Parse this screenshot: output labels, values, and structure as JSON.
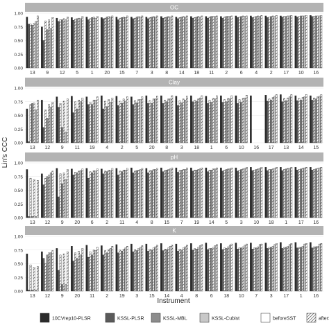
{
  "chart_data": {
    "type": "bar",
    "ylabel": "Lin's CCC",
    "xlabel": "Instrument",
    "ylim": [
      0,
      1
    ],
    "yticks": [
      "0.00",
      "0.25",
      "0.50",
      "0.75",
      "1.00"
    ],
    "grid": true,
    "legend_position": "bottom",
    "colors": {
      "10CVrep10-PLSR": "#2b2b2b",
      "KSSL-PLSR": "#5a5a5a",
      "KSSL-MBL": "#8c8c8c",
      "KSSL-Cubist": "#c8c8c8",
      "strip": "#b3b3b3",
      "panel": "#ffffff",
      "grid": "#e6e6e6"
    },
    "legend": {
      "models": [
        "10CVrep10-PLSR",
        "KSSL-PLSR",
        "KSSL-MBL",
        "KSSL-Cubist"
      ],
      "states": [
        "beforeSST",
        "afterSST"
      ]
    },
    "panels": [
      {
        "name": "OC",
        "categories": [
          "13",
          "9",
          "12",
          "5",
          "1",
          "20",
          "15",
          "7",
          "3",
          "8",
          "14",
          "18",
          "11",
          "2",
          "6",
          "4",
          "2",
          "17",
          "10",
          "16"
        ],
        "series": [
          {
            "name": "10CVrep10-PLSR",
            "values": [
              0.93,
              0.75,
              0.91,
              0.92,
              0.93,
              0.92,
              0.93,
              0.93,
              0.93,
              0.94,
              0.93,
              0.94,
              0.94,
              0.94,
              0.95,
              0.95,
              0.95,
              0.95,
              0.95,
              0.96
            ]
          },
          {
            "name": "KSSL-PLSR beforeSST",
            "values": [
              0.8,
              0.5,
              0.85,
              0.87,
              0.88,
              0.9,
              0.88,
              0.9,
              0.9,
              0.91,
              0.9,
              0.91,
              0.91,
              0.91,
              0.92,
              0.92,
              0.92,
              0.93,
              0.93,
              0.94
            ]
          },
          {
            "name": "KSSL-PLSR afterSST",
            "values": [
              0.8,
              0.86,
              0.88,
              0.89,
              0.9,
              0.91,
              0.91,
              0.91,
              0.92,
              0.92,
              0.92,
              0.92,
              0.93,
              0.93,
              0.93,
              0.93,
              0.93,
              0.94,
              0.94,
              0.94
            ]
          },
          {
            "name": "KSSL-MBL beforeSST",
            "values": [
              0.78,
              0.7,
              0.88,
              0.9,
              0.92,
              0.93,
              0.92,
              0.93,
              0.93,
              0.93,
              0.93,
              0.93,
              0.94,
              0.94,
              0.94,
              0.94,
              0.94,
              0.94,
              0.95,
              0.95
            ]
          },
          {
            "name": "KSSL-MBL afterSST",
            "values": [
              0.82,
              0.88,
              0.9,
              0.91,
              0.93,
              0.94,
              0.93,
              0.94,
              0.94,
              0.94,
              0.94,
              0.94,
              0.94,
              0.94,
              0.95,
              0.95,
              0.95,
              0.95,
              0.95,
              0.95
            ]
          },
          {
            "name": "KSSL-Cubist beforeSST",
            "values": [
              0.85,
              0.72,
              0.88,
              0.9,
              0.91,
              0.93,
              0.92,
              0.93,
              0.93,
              0.93,
              0.93,
              0.93,
              0.94,
              0.94,
              0.94,
              0.94,
              0.94,
              0.95,
              0.95,
              0.95
            ]
          },
          {
            "name": "KSSL-Cubist afterSST",
            "values": [
              0.95,
              0.92,
              0.93,
              0.94,
              0.94,
              0.95,
              0.95,
              0.95,
              0.95,
              0.95,
              0.95,
              0.95,
              0.95,
              0.95,
              0.95,
              0.96,
              0.96,
              0.96,
              0.96,
              0.96
            ]
          }
        ]
      },
      {
        "name": "Clay",
        "categories": [
          "13",
          "12",
          "9",
          "11",
          "19",
          "4",
          "2",
          "5",
          "20",
          "8",
          "3",
          "18",
          "1",
          "6",
          "10",
          "16",
          "17",
          "13",
          "14",
          "15"
        ],
        "series": [
          {
            "name": "10CVrep10-PLSR",
            "values": [
              0.62,
              0.78,
              0.84,
              0.85,
              0.84,
              0.86,
              0.85,
              0.84,
              0.86,
              0.86,
              0.85,
              0.86,
              0.85,
              0.86,
              0.86,
              0.86,
              0.87,
              0.88,
              0.86,
              0.86
            ]
          },
          {
            "name": "KSSL-PLSR beforeSST",
            "values": [
              0.02,
              0.28,
              0.65,
              0.55,
              0.7,
              0.62,
              0.68,
              0.7,
              0.72,
              0.72,
              0.68,
              0.75,
              0.72,
              0.74,
              0.72,
              null,
              0.76,
              0.75,
              0.77,
              0.78
            ]
          },
          {
            "name": "KSSL-PLSR afterSST",
            "values": [
              0.7,
              0.6,
              0.72,
              0.75,
              0.74,
              0.76,
              0.76,
              0.77,
              0.77,
              0.78,
              0.77,
              0.78,
              0.78,
              0.79,
              0.79,
              null,
              0.8,
              0.81,
              0.81,
              0.82
            ]
          },
          {
            "name": "KSSL-MBL beforeSST",
            "values": [
              0.72,
              0.45,
              0.28,
              0.62,
              0.7,
              0.66,
              0.72,
              0.73,
              0.72,
              0.75,
              0.73,
              0.76,
              0.74,
              0.75,
              0.74,
              null,
              0.78,
              0.77,
              0.78,
              0.8
            ]
          },
          {
            "name": "KSSL-MBL afterSST",
            "values": [
              0.73,
              0.7,
              0.76,
              0.78,
              0.78,
              0.79,
              0.8,
              0.79,
              0.8,
              0.8,
              0.8,
              0.8,
              0.81,
              0.81,
              0.81,
              null,
              0.83,
              0.82,
              0.83,
              0.84
            ]
          },
          {
            "name": "KSSL-Cubist beforeSST",
            "values": [
              0.6,
              0.65,
              0.2,
              0.75,
              0.78,
              0.74,
              0.76,
              0.79,
              0.8,
              0.8,
              0.78,
              0.82,
              0.8,
              0.8,
              0.82,
              null,
              0.85,
              0.84,
              0.84,
              0.85
            ]
          },
          {
            "name": "KSSL-Cubist afterSST",
            "values": [
              0.78,
              0.74,
              0.8,
              0.82,
              0.84,
              0.82,
              0.84,
              0.84,
              0.85,
              0.86,
              0.85,
              0.86,
              0.86,
              0.86,
              0.87,
              null,
              0.88,
              0.88,
              0.88,
              0.88
            ]
          }
        ]
      },
      {
        "name": "pH",
        "categories": [
          "13",
          "12",
          "9",
          "20",
          "6",
          "2",
          "11",
          "4",
          "8",
          "15",
          "7",
          "19",
          "14",
          "5",
          "3",
          "10",
          "18",
          "1",
          "17",
          "16"
        ],
        "series": [
          {
            "name": "10CVrep10-PLSR",
            "values": [
              0.88,
              0.8,
              0.9,
              0.89,
              0.9,
              0.89,
              0.9,
              0.91,
              0.9,
              0.91,
              0.91,
              0.91,
              0.91,
              0.91,
              0.91,
              0.92,
              0.92,
              0.92,
              0.92,
              0.92
            ]
          },
          {
            "name": "KSSL-PLSR beforeSST",
            "values": [
              0.02,
              0.6,
              0.38,
              0.78,
              0.72,
              0.8,
              0.78,
              0.82,
              0.82,
              0.84,
              0.83,
              0.85,
              0.84,
              0.85,
              0.85,
              0.86,
              0.86,
              0.86,
              0.87,
              0.87
            ]
          },
          {
            "name": "KSSL-PLSR afterSST",
            "values": [
              0.72,
              0.72,
              0.8,
              0.83,
              0.84,
              0.85,
              0.85,
              0.85,
              0.86,
              0.86,
              0.86,
              0.87,
              0.87,
              0.87,
              0.87,
              0.87,
              0.88,
              0.88,
              0.88,
              0.88
            ]
          },
          {
            "name": "KSSL-MBL beforeSST",
            "values": [
              0.02,
              0.75,
              0.62,
              0.82,
              0.82,
              0.84,
              0.84,
              0.86,
              0.86,
              0.87,
              0.87,
              0.87,
              0.87,
              0.88,
              0.88,
              0.88,
              0.88,
              0.89,
              0.89,
              0.89
            ]
          },
          {
            "name": "KSSL-MBL afterSST",
            "values": [
              0.7,
              0.78,
              0.82,
              0.85,
              0.86,
              0.87,
              0.87,
              0.87,
              0.88,
              0.88,
              0.88,
              0.88,
              0.89,
              0.89,
              0.89,
              0.89,
              0.89,
              0.9,
              0.9,
              0.9
            ]
          },
          {
            "name": "KSSL-Cubist beforeSST",
            "values": [
              0.02,
              0.82,
              0.7,
              0.86,
              0.85,
              0.86,
              0.87,
              0.88,
              0.88,
              0.89,
              0.88,
              0.89,
              0.89,
              0.89,
              0.9,
              0.9,
              0.9,
              0.9,
              0.91,
              0.91
            ]
          },
          {
            "name": "KSSL-Cubist afterSST",
            "values": [
              0.68,
              0.85,
              0.88,
              0.89,
              0.89,
              0.9,
              0.9,
              0.9,
              0.9,
              0.91,
              0.91,
              0.91,
              0.91,
              0.91,
              0.92,
              0.92,
              0.92,
              0.92,
              0.92,
              0.92
            ]
          }
        ]
      },
      {
        "name": "K",
        "categories": [
          "13",
          "12",
          "9",
          "20",
          "11",
          "2",
          "19",
          "3",
          "15",
          "14",
          "4",
          "8",
          "6",
          "18",
          "10",
          "7",
          "3",
          "17",
          "1",
          "16"
        ],
        "series": [
          {
            "name": "10CVrep10-PLSR",
            "values": [
              0.68,
              0.72,
              0.78,
              0.82,
              0.84,
              0.83,
              0.85,
              0.86,
              0.86,
              0.87,
              0.86,
              0.87,
              0.88,
              0.87,
              0.88,
              0.88,
              0.88,
              0.89,
              0.89,
              0.89
            ]
          },
          {
            "name": "KSSL-PLSR beforeSST",
            "values": [
              0.02,
              0.6,
              0.38,
              0.55,
              0.62,
              0.66,
              0.7,
              0.72,
              0.73,
              0.74,
              0.73,
              0.75,
              0.76,
              0.76,
              0.77,
              0.77,
              0.78,
              0.78,
              0.79,
              0.79
            ]
          },
          {
            "name": "KSSL-PLSR afterSST",
            "values": [
              0.48,
              0.5,
              0.66,
              0.7,
              0.72,
              0.74,
              0.75,
              0.76,
              0.77,
              0.77,
              0.77,
              0.78,
              0.78,
              0.79,
              0.79,
              0.79,
              0.8,
              0.8,
              0.8,
              0.81
            ]
          },
          {
            "name": "KSSL-MBL beforeSST",
            "values": [
              0.02,
              0.66,
              0.12,
              0.6,
              0.66,
              0.7,
              0.73,
              0.74,
              0.75,
              0.76,
              0.75,
              0.77,
              0.78,
              0.78,
              0.79,
              0.79,
              0.8,
              0.8,
              0.8,
              0.81
            ]
          },
          {
            "name": "KSSL-MBL afterSST",
            "values": [
              0.44,
              0.7,
              0.68,
              0.73,
              0.75,
              0.76,
              0.77,
              0.78,
              0.79,
              0.79,
              0.79,
              0.8,
              0.8,
              0.81,
              0.81,
              0.81,
              0.82,
              0.82,
              0.82,
              0.82
            ]
          },
          {
            "name": "KSSL-Cubist beforeSST",
            "values": [
              0.02,
              0.7,
              0.12,
              0.66,
              0.74,
              0.78,
              0.79,
              0.8,
              0.81,
              0.82,
              0.81,
              0.83,
              0.83,
              0.84,
              0.84,
              0.85,
              0.85,
              0.85,
              0.86,
              0.86
            ]
          },
          {
            "name": "KSSL-Cubist afterSST",
            "values": [
              0.45,
              0.74,
              0.72,
              0.78,
              0.8,
              0.82,
              0.82,
              0.83,
              0.84,
              0.84,
              0.84,
              0.85,
              0.85,
              0.86,
              0.86,
              0.86,
              0.87,
              0.87,
              0.87,
              0.87
            ]
          }
        ]
      }
    ]
  }
}
